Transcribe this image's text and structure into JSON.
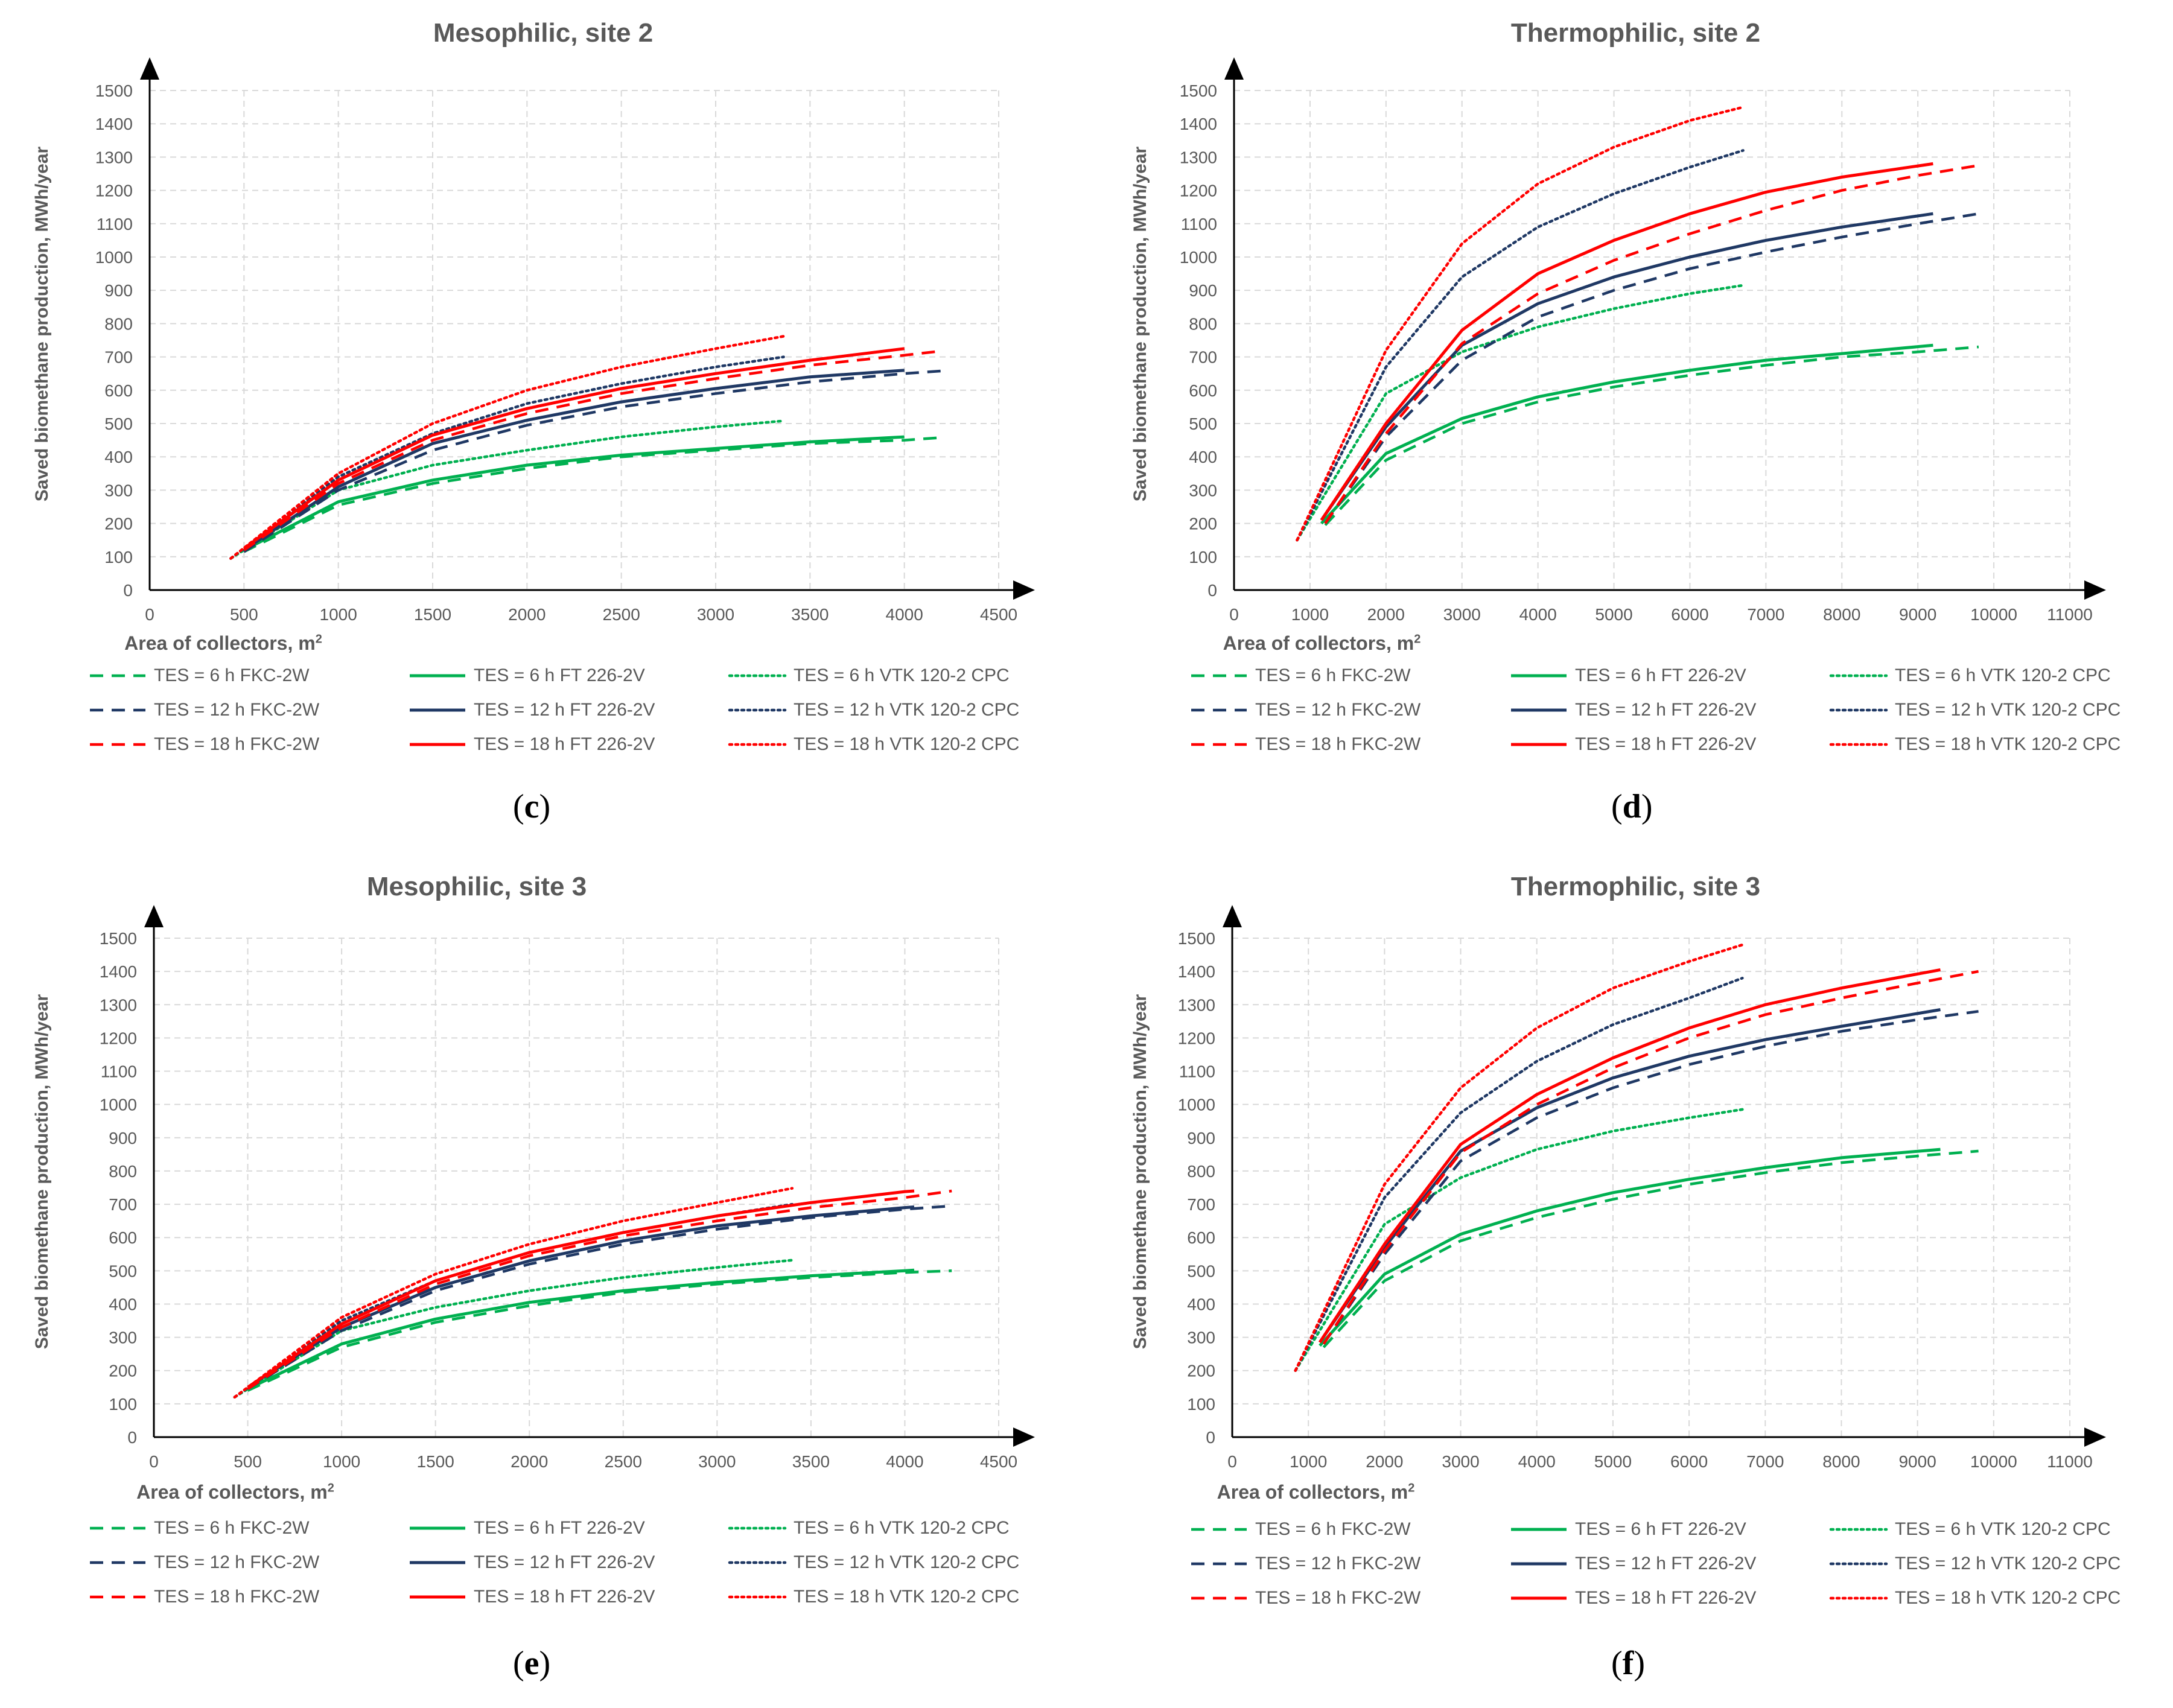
{
  "colors": {
    "green": "#00B050",
    "navy": "#1F3864",
    "red": "#FF0000",
    "grid": "#D9D9D9",
    "axis": "#000000",
    "text": "#595959"
  },
  "legend_entries": [
    {
      "label": "TES = 6 h FKC-2W",
      "color": "green",
      "style": "dashed"
    },
    {
      "label": "TES = 6 h FT 226-2V",
      "color": "green",
      "style": "solid"
    },
    {
      "label": "TES = 6 h VTK 120-2 CPC",
      "color": "green",
      "style": "dotted"
    },
    {
      "label": "TES = 12 h FKC-2W",
      "color": "navy",
      "style": "dashed"
    },
    {
      "label": "TES = 12 h FT 226-2V",
      "color": "navy",
      "style": "solid"
    },
    {
      "label": "TES = 12 h VTK 120-2 CPC",
      "color": "navy",
      "style": "dotted"
    },
    {
      "label": "TES = 18 h FKC-2W",
      "color": "red",
      "style": "dashed"
    },
    {
      "label": "TES = 18 h FT 226-2V",
      "color": "red",
      "style": "solid"
    },
    {
      "label": "TES = 18 h VTK 120-2 CPC",
      "color": "red",
      "style": "dotted"
    }
  ],
  "chart_data": [
    {
      "type": "line",
      "panel_label": "c",
      "title": "Mesophilic, site 2",
      "xlabel": "Area of collectors, m",
      "xlabel_sup": "2",
      "ylabel": "Saved biomethane production, MWh/year",
      "xlim": [
        0,
        4500
      ],
      "ylim": [
        0,
        1500
      ],
      "xticks": [
        0,
        500,
        1000,
        1500,
        2000,
        2500,
        3000,
        3500,
        4000,
        4500
      ],
      "yticks": [
        0,
        100,
        200,
        300,
        400,
        500,
        600,
        700,
        800,
        900,
        1000,
        1100,
        1200,
        1300,
        1400,
        1500
      ],
      "series": [
        {
          "name": "TES = 6 h FKC-2W",
          "x": [
            500,
            1000,
            1500,
            2000,
            2500,
            3000,
            3500,
            4000,
            4200
          ],
          "y": [
            115,
            255,
            320,
            365,
            400,
            420,
            440,
            450,
            458
          ]
        },
        {
          "name": "TES = 6 h FT 226-2V",
          "x": [
            500,
            1000,
            1500,
            2000,
            2500,
            3000,
            3500,
            4000
          ],
          "y": [
            120,
            265,
            330,
            375,
            405,
            425,
            445,
            460
          ]
        },
        {
          "name": "TES = 6 h VTK 120-2 CPC",
          "x": [
            430,
            1000,
            1500,
            2000,
            2500,
            3000,
            3360
          ],
          "y": [
            95,
            300,
            375,
            420,
            460,
            490,
            508
          ]
        },
        {
          "name": "TES = 12 h FKC-2W",
          "x": [
            500,
            1000,
            1500,
            2000,
            2500,
            3000,
            3500,
            4000,
            4200
          ],
          "y": [
            115,
            300,
            420,
            495,
            550,
            590,
            625,
            650,
            658
          ]
        },
        {
          "name": "TES = 12 h FT 226-2V",
          "x": [
            500,
            1000,
            1500,
            2000,
            2500,
            3000,
            3500,
            4000
          ],
          "y": [
            120,
            310,
            440,
            510,
            565,
            605,
            640,
            660
          ]
        },
        {
          "name": "TES = 12 h VTK 120-2 CPC",
          "x": [
            430,
            1000,
            1500,
            2000,
            2500,
            3000,
            3360
          ],
          "y": [
            95,
            340,
            470,
            560,
            620,
            670,
            700
          ]
        },
        {
          "name": "TES = 18 h FKC-2W",
          "x": [
            500,
            1000,
            1500,
            2000,
            2500,
            3000,
            3500,
            4000,
            4200
          ],
          "y": [
            120,
            320,
            450,
            530,
            590,
            635,
            675,
            705,
            718
          ]
        },
        {
          "name": "TES = 18 h FT 226-2V",
          "x": [
            500,
            1000,
            1500,
            2000,
            2500,
            3000,
            3500,
            4000
          ],
          "y": [
            125,
            330,
            465,
            545,
            605,
            650,
            690,
            725
          ]
        },
        {
          "name": "TES = 18 h VTK 120-2 CPC",
          "x": [
            430,
            1000,
            1500,
            2000,
            2500,
            3000,
            3360
          ],
          "y": [
            95,
            350,
            500,
            600,
            670,
            725,
            762
          ]
        }
      ]
    },
    {
      "type": "line",
      "panel_label": "d",
      "title": "Thermophilic, site 2",
      "xlabel": "Area of collectors, m",
      "xlabel_sup": "2",
      "ylabel": "Saved biomethane production, MWh/year",
      "xlim": [
        0,
        11000
      ],
      "ylim": [
        0,
        1500
      ],
      "xticks": [
        0,
        1000,
        2000,
        3000,
        4000,
        5000,
        6000,
        7000,
        8000,
        9000,
        10000,
        11000
      ],
      "yticks": [
        0,
        100,
        200,
        300,
        400,
        500,
        600,
        700,
        800,
        900,
        1000,
        1100,
        1200,
        1300,
        1400,
        1500
      ],
      "series": [
        {
          "name": "TES = 6 h FKC-2W",
          "x": [
            1200,
            2000,
            3000,
            4000,
            5000,
            6000,
            7000,
            8000,
            9000,
            9800
          ],
          "y": [
            195,
            390,
            500,
            565,
            610,
            645,
            675,
            700,
            715,
            730
          ]
        },
        {
          "name": "TES = 6 h FT 226-2V",
          "x": [
            1150,
            2000,
            3000,
            4000,
            5000,
            6000,
            7000,
            8000,
            9200
          ],
          "y": [
            200,
            410,
            515,
            580,
            625,
            660,
            690,
            710,
            735
          ]
        },
        {
          "name": "TES = 6 h VTK 120-2 CPC",
          "x": [
            830,
            2000,
            3000,
            4000,
            5000,
            6000,
            6700
          ],
          "y": [
            150,
            590,
            715,
            790,
            845,
            890,
            915
          ]
        },
        {
          "name": "TES = 12 h FKC-2W",
          "x": [
            1200,
            2000,
            3000,
            4000,
            5000,
            6000,
            7000,
            8000,
            9000,
            9800
          ],
          "y": [
            200,
            460,
            690,
            820,
            900,
            965,
            1015,
            1060,
            1100,
            1130
          ]
        },
        {
          "name": "TES = 12 h FT 226-2V",
          "x": [
            1150,
            2000,
            3000,
            4000,
            5000,
            6000,
            7000,
            8000,
            9200
          ],
          "y": [
            210,
            490,
            735,
            860,
            940,
            1000,
            1050,
            1090,
            1130
          ]
        },
        {
          "name": "TES = 12 h VTK 120-2 CPC",
          "x": [
            830,
            2000,
            3000,
            4000,
            5000,
            6000,
            6700
          ],
          "y": [
            150,
            670,
            940,
            1090,
            1190,
            1270,
            1320
          ]
        },
        {
          "name": "TES = 18 h FKC-2W",
          "x": [
            1200,
            2000,
            3000,
            4000,
            5000,
            6000,
            7000,
            8000,
            9000,
            9800
          ],
          "y": [
            200,
            470,
            740,
            890,
            990,
            1070,
            1140,
            1200,
            1245,
            1275
          ]
        },
        {
          "name": "TES = 18 h FT 226-2V",
          "x": [
            1150,
            2000,
            3000,
            4000,
            5000,
            6000,
            7000,
            8000,
            9200
          ],
          "y": [
            210,
            500,
            780,
            950,
            1050,
            1130,
            1195,
            1240,
            1280
          ]
        },
        {
          "name": "TES = 18 h VTK 120-2 CPC",
          "x": [
            830,
            2000,
            3000,
            4000,
            5000,
            6000,
            6700
          ],
          "y": [
            150,
            720,
            1040,
            1220,
            1330,
            1410,
            1450
          ]
        }
      ]
    },
    {
      "type": "line",
      "panel_label": "e",
      "title": "Mesophilic, site 3",
      "xlabel": "Area of collectors, m",
      "xlabel_sup": "2",
      "ylabel": "Saved biomethane production, MWh/year",
      "xlim": [
        0,
        4500
      ],
      "ylim": [
        0,
        1500
      ],
      "xticks": [
        0,
        500,
        1000,
        1500,
        2000,
        2500,
        3000,
        3500,
        4000,
        4500
      ],
      "yticks": [
        0,
        100,
        200,
        300,
        400,
        500,
        600,
        700,
        800,
        900,
        1000,
        1100,
        1200,
        1300,
        1400,
        1500
      ],
      "series": [
        {
          "name": "TES = 6 h FKC-2W",
          "x": [
            500,
            1000,
            1500,
            2000,
            2500,
            3000,
            3500,
            4000,
            4250
          ],
          "y": [
            140,
            270,
            345,
            395,
            435,
            460,
            480,
            495,
            500
          ]
        },
        {
          "name": "TES = 6 h FT 226-2V",
          "x": [
            500,
            1000,
            1500,
            2000,
            2500,
            3000,
            3500,
            4000,
            4050
          ],
          "y": [
            145,
            280,
            355,
            405,
            440,
            465,
            485,
            500,
            502
          ]
        },
        {
          "name": "TES = 6 h VTK 120-2 CPC",
          "x": [
            430,
            1000,
            1500,
            2000,
            2500,
            3000,
            3400
          ],
          "y": [
            120,
            320,
            390,
            440,
            480,
            510,
            532
          ]
        },
        {
          "name": "TES = 12 h FKC-2W",
          "x": [
            500,
            1000,
            1500,
            2000,
            2500,
            3000,
            3500,
            4000,
            4250
          ],
          "y": [
            145,
            320,
            440,
            520,
            580,
            625,
            660,
            685,
            695
          ]
        },
        {
          "name": "TES = 12 h FT 226-2V",
          "x": [
            500,
            1000,
            1500,
            2000,
            2500,
            3000,
            3500,
            4000,
            4050
          ],
          "y": [
            150,
            330,
            450,
            530,
            590,
            635,
            665,
            690,
            692
          ]
        },
        {
          "name": "TES = 12 h VTK 120-2 CPC",
          "x": [
            430,
            1000,
            1500,
            2000,
            2500,
            3000,
            3400
          ],
          "y": [
            120,
            350,
            470,
            555,
            615,
            665,
            700
          ]
        },
        {
          "name": "TES = 18 h FKC-2W",
          "x": [
            500,
            1000,
            1500,
            2000,
            2500,
            3000,
            3500,
            4000,
            4250
          ],
          "y": [
            145,
            330,
            460,
            545,
            605,
            650,
            690,
            720,
            740
          ]
        },
        {
          "name": "TES = 18 h FT 226-2V",
          "x": [
            500,
            1000,
            1500,
            2000,
            2500,
            3000,
            3500,
            4000,
            4050
          ],
          "y": [
            150,
            340,
            470,
            555,
            615,
            665,
            705,
            738,
            740
          ]
        },
        {
          "name": "TES = 18 h VTK 120-2 CPC",
          "x": [
            430,
            1000,
            1500,
            2000,
            2500,
            3000,
            3400
          ],
          "y": [
            120,
            360,
            490,
            580,
            650,
            705,
            748
          ]
        }
      ]
    },
    {
      "type": "line",
      "panel_label": "f",
      "title": "Thermophilic, site 3",
      "xlabel": "Area of collectors, m",
      "xlabel_sup": "2",
      "ylabel": "Saved biomethane production, MWh/year",
      "xlim": [
        0,
        11000
      ],
      "ylim": [
        0,
        1500
      ],
      "xticks": [
        0,
        1000,
        2000,
        3000,
        4000,
        5000,
        6000,
        7000,
        8000,
        9000,
        10000,
        11000
      ],
      "yticks": [
        0,
        100,
        200,
        300,
        400,
        500,
        600,
        700,
        800,
        900,
        1000,
        1100,
        1200,
        1300,
        1400,
        1500
      ],
      "series": [
        {
          "name": "TES = 6 h FKC-2W",
          "x": [
            1200,
            2000,
            3000,
            4000,
            5000,
            6000,
            7000,
            8000,
            9000,
            9800
          ],
          "y": [
            270,
            470,
            590,
            660,
            715,
            760,
            795,
            825,
            845,
            860
          ]
        },
        {
          "name": "TES = 6 h FT 226-2V",
          "x": [
            1150,
            2000,
            3000,
            4000,
            5000,
            6000,
            7000,
            8000,
            9300
          ],
          "y": [
            275,
            490,
            610,
            680,
            735,
            775,
            810,
            840,
            865
          ]
        },
        {
          "name": "TES = 6 h VTK 120-2 CPC",
          "x": [
            830,
            2000,
            3000,
            4000,
            5000,
            6000,
            6700
          ],
          "y": [
            200,
            640,
            780,
            865,
            920,
            960,
            985
          ]
        },
        {
          "name": "TES = 12 h FKC-2W",
          "x": [
            1200,
            2000,
            3000,
            4000,
            5000,
            6000,
            7000,
            8000,
            9000,
            9800
          ],
          "y": [
            280,
            550,
            830,
            960,
            1050,
            1120,
            1175,
            1220,
            1255,
            1280
          ]
        },
        {
          "name": "TES = 12 h FT 226-2V",
          "x": [
            1150,
            2000,
            3000,
            4000,
            5000,
            6000,
            7000,
            8000,
            9300
          ],
          "y": [
            285,
            570,
            860,
            990,
            1080,
            1145,
            1195,
            1235,
            1285
          ]
        },
        {
          "name": "TES = 12 h VTK 120-2 CPC",
          "x": [
            830,
            2000,
            3000,
            4000,
            5000,
            6000,
            6700
          ],
          "y": [
            200,
            720,
            975,
            1130,
            1240,
            1320,
            1380
          ]
        },
        {
          "name": "TES = 18 h FKC-2W",
          "x": [
            1200,
            2000,
            3000,
            4000,
            5000,
            6000,
            7000,
            8000,
            9000,
            9800
          ],
          "y": [
            280,
            560,
            855,
            1000,
            1110,
            1200,
            1270,
            1320,
            1365,
            1400
          ]
        },
        {
          "name": "TES = 18 h FT 226-2V",
          "x": [
            1150,
            2000,
            3000,
            4000,
            5000,
            6000,
            7000,
            8000,
            9300
          ],
          "y": [
            285,
            580,
            880,
            1030,
            1140,
            1230,
            1300,
            1350,
            1405
          ]
        },
        {
          "name": "TES = 18 h VTK 120-2 CPC",
          "x": [
            830,
            2000,
            3000,
            4000,
            5000,
            6000,
            6700
          ],
          "y": [
            200,
            760,
            1050,
            1230,
            1350,
            1430,
            1480
          ]
        }
      ]
    }
  ]
}
